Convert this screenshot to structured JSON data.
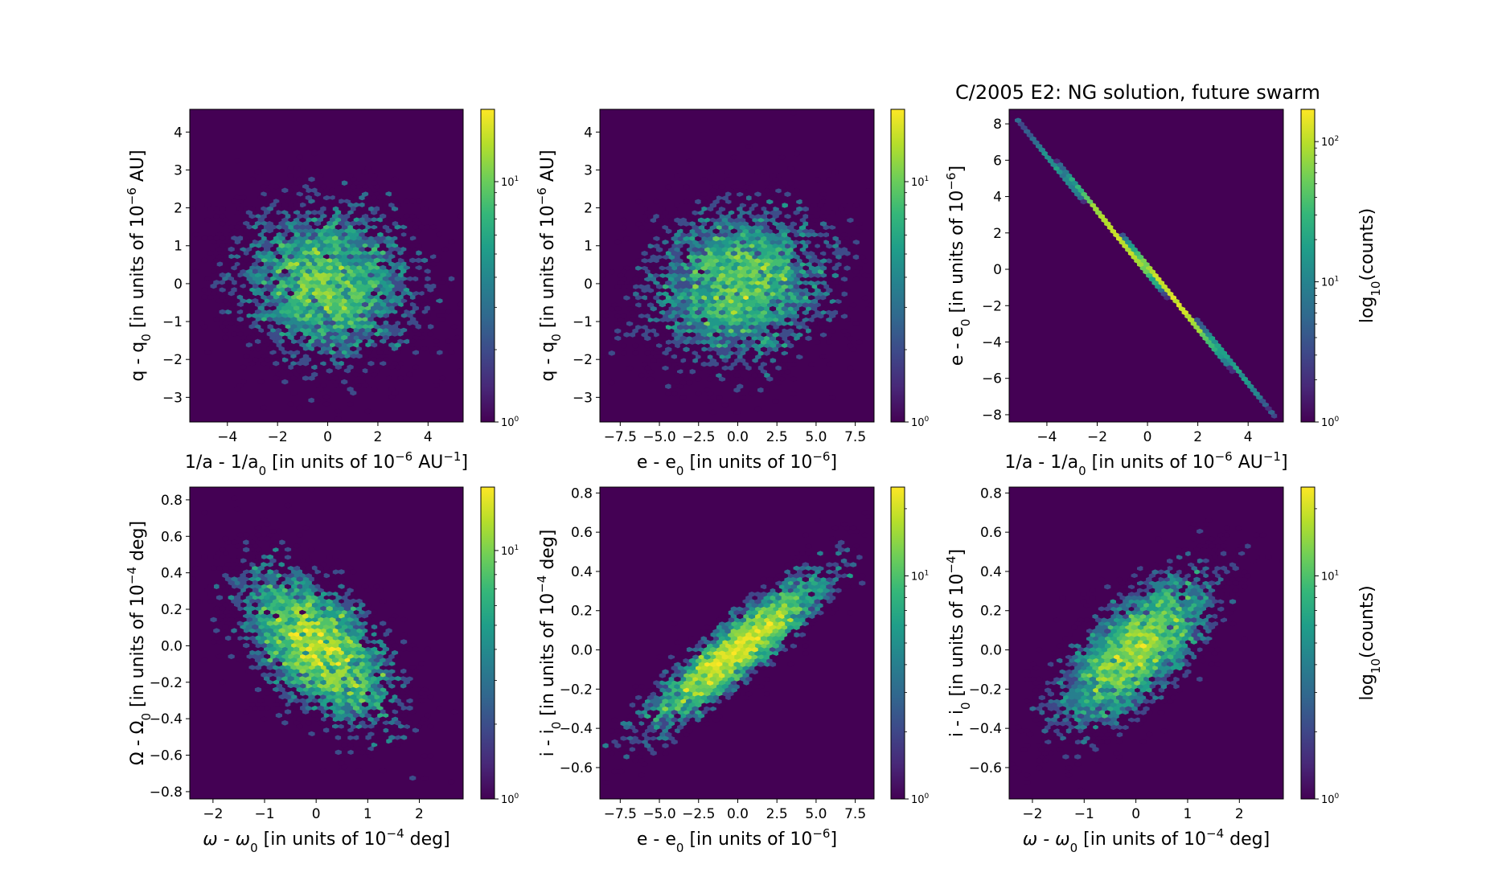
{
  "figure": {
    "title": "C/2005 E2:  NG solution, future swarm"
  },
  "colormap": {
    "name": "viridis",
    "stops": [
      "#440154",
      "#482878",
      "#3e4989",
      "#31688e",
      "#26828e",
      "#1f9e89",
      "#35b779",
      "#6ece58",
      "#b5de2b",
      "#fde725"
    ]
  },
  "chart_data": [
    {
      "type": "heatmap",
      "kind": "hexbin",
      "xlabel": "1/a - 1/a0 [in units of 10^-6 AU^-1]",
      "ylabel": "q - q0 [in units of 10^-6 AU]",
      "xlim": [
        -5.5,
        5.4
      ],
      "ylim": [
        -3.65,
        4.6
      ],
      "xticks": [
        -4,
        -2,
        0,
        2,
        4
      ],
      "yticks": [
        -3,
        -2,
        -1,
        0,
        1,
        2,
        3,
        4
      ],
      "xtick_labels": [
        "−4",
        "−2",
        "0",
        "2",
        "4"
      ],
      "ytick_labels": [
        "−3",
        "−2",
        "−1",
        "0",
        "1",
        "2",
        "3",
        "4"
      ],
      "distribution": {
        "x_mean": 0,
        "x_sd": 1.8,
        "y_mean": 0,
        "y_sd": 1.05,
        "correlation": -0.1
      },
      "colorbar": {
        "scale": "log",
        "min": 1,
        "max": 20,
        "ticks": [
          1,
          10
        ],
        "tick_labels": [
          "10^0",
          "10^1"
        ],
        "label": ""
      }
    },
    {
      "type": "heatmap",
      "kind": "hexbin",
      "xlabel": "e - e0 [in units of 10^-6]",
      "ylabel": "q - q0 [in units of 10^-6 AU]",
      "xlim": [
        -8.8,
        8.7
      ],
      "ylim": [
        -3.65,
        4.6
      ],
      "xticks": [
        -7.5,
        -5.0,
        -2.5,
        0.0,
        2.5,
        5.0,
        7.5
      ],
      "yticks": [
        -3,
        -2,
        -1,
        0,
        1,
        2,
        3,
        4
      ],
      "xtick_labels": [
        "−7.5",
        "−5.0",
        "−2.5",
        "0.0",
        "2.5",
        "5.0",
        "7.5"
      ],
      "ytick_labels": [
        "−3",
        "−2",
        "−1",
        "0",
        "1",
        "2",
        "3",
        "4"
      ],
      "distribution": {
        "x_mean": 0,
        "x_sd": 2.9,
        "y_mean": 0,
        "y_sd": 1.05,
        "correlation": 0.1
      },
      "colorbar": {
        "scale": "log",
        "min": 1,
        "max": 20,
        "ticks": [
          1,
          10
        ],
        "tick_labels": [
          "10^0",
          "10^1"
        ],
        "label": ""
      }
    },
    {
      "type": "heatmap",
      "kind": "hexbin",
      "xlabel": "1/a - 1/a0 [in units of 10^-6 AU^-1]",
      "ylabel": "e - e0 [in units of 10^-6]",
      "xlim": [
        -5.5,
        5.4
      ],
      "ylim": [
        -8.4,
        8.8
      ],
      "xticks": [
        -4,
        -2,
        0,
        2,
        4
      ],
      "yticks": [
        -8,
        -6,
        -4,
        -2,
        0,
        2,
        4,
        6,
        8
      ],
      "xtick_labels": [
        "−4",
        "−2",
        "0",
        "2",
        "4"
      ],
      "ytick_labels": [
        "−8",
        "−6",
        "−4",
        "−2",
        "0",
        "2",
        "4",
        "6",
        "8"
      ],
      "distribution": {
        "x_mean": 0,
        "x_sd": 1.8,
        "slope": -1.58,
        "y_noise": 0.04
      },
      "colorbar": {
        "scale": "log",
        "min": 1,
        "max": 170,
        "ticks": [
          1,
          10,
          100
        ],
        "tick_labels": [
          "10^0",
          "10^1",
          "10^2"
        ],
        "label": "log10(counts)"
      }
    },
    {
      "type": "heatmap",
      "kind": "hexbin",
      "xlabel": "ω - ω0 [in units of 10^-4 deg]",
      "ylabel": "Ω - Ω0 [in units of 10^-4 deg]",
      "xlim": [
        -2.45,
        2.85
      ],
      "ylim": [
        -0.84,
        0.87
      ],
      "xticks": [
        -2,
        -1,
        0,
        1,
        2
      ],
      "yticks": [
        -0.8,
        -0.6,
        -0.4,
        -0.2,
        0.0,
        0.2,
        0.4,
        0.6,
        0.8
      ],
      "xtick_labels": [
        "−2",
        "−1",
        "0",
        "1",
        "2"
      ],
      "ytick_labels": [
        "−0.8",
        "−0.6",
        "−0.4",
        "−0.2",
        "0.0",
        "0.2",
        "0.4",
        "0.6",
        "0.8"
      ],
      "distribution": {
        "x_mean": 0,
        "x_sd": 0.75,
        "y_mean": 0,
        "y_sd": 0.22,
        "correlation": -0.55
      },
      "colorbar": {
        "scale": "log",
        "min": 1,
        "max": 18,
        "ticks": [
          1,
          10
        ],
        "tick_labels": [
          "10^0",
          "10^1"
        ],
        "label": ""
      }
    },
    {
      "type": "heatmap",
      "kind": "hexbin",
      "xlabel": "e - e0 [in units of 10^-6]",
      "ylabel": "i - i0 [in units of 10^-4 deg]",
      "xlim": [
        -8.8,
        8.7
      ],
      "ylim": [
        -0.76,
        0.83
      ],
      "xticks": [
        -7.5,
        -5.0,
        -2.5,
        0.0,
        2.5,
        5.0,
        7.5
      ],
      "yticks": [
        -0.6,
        -0.4,
        -0.2,
        0.0,
        0.2,
        0.4,
        0.6,
        0.8
      ],
      "xtick_labels": [
        "−7.5",
        "−5.0",
        "−2.5",
        "0.0",
        "2.5",
        "5.0",
        "7.5"
      ],
      "ytick_labels": [
        "−0.6",
        "−0.4",
        "−0.2",
        "0.0",
        "0.2",
        "0.4",
        "0.6",
        "0.8"
      ],
      "distribution": {
        "x_mean": 0,
        "x_sd": 2.9,
        "y_mean": 0,
        "y_sd": 0.2,
        "correlation": 0.9
      },
      "colorbar": {
        "scale": "log",
        "min": 1,
        "max": 25,
        "ticks": [
          1,
          10
        ],
        "tick_labels": [
          "10^0",
          "10^1"
        ],
        "label": ""
      }
    },
    {
      "type": "heatmap",
      "kind": "hexbin",
      "xlabel": "ω - ω0 [in units of 10^-4 deg]",
      "ylabel": "i - i0 [in units of 10^-4]",
      "xlim": [
        -2.45,
        2.85
      ],
      "ylim": [
        -0.76,
        0.83
      ],
      "xticks": [
        -2,
        -1,
        0,
        1,
        2
      ],
      "yticks": [
        -0.6,
        -0.4,
        -0.2,
        0.0,
        0.2,
        0.4,
        0.6,
        0.8
      ],
      "xtick_labels": [
        "−2",
        "−1",
        "0",
        "1",
        "2"
      ],
      "ytick_labels": [
        "−0.6",
        "−0.4",
        "−0.2",
        "0.0",
        "0.2",
        "0.4",
        "0.6",
        "0.8"
      ],
      "distribution": {
        "x_mean": 0,
        "x_sd": 0.75,
        "y_mean": 0,
        "y_sd": 0.2,
        "correlation": 0.7
      },
      "colorbar": {
        "scale": "log",
        "min": 1,
        "max": 25,
        "ticks": [
          1,
          10
        ],
        "tick_labels": [
          "10^0",
          "10^1"
        ],
        "label": "log10(counts)"
      }
    }
  ]
}
